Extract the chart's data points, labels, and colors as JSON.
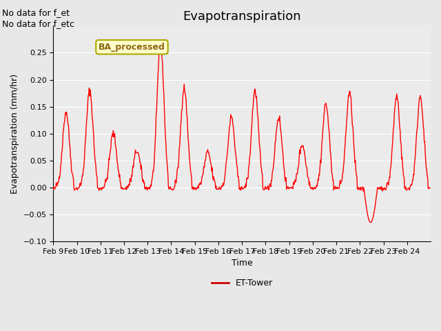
{
  "title": "Evapotranspiration",
  "xlabel": "Time",
  "ylabel": "Evapotranspiration (mm/hr)",
  "ylim": [
    -0.1,
    0.3
  ],
  "yticks": [
    -0.1,
    -0.05,
    0.0,
    0.05,
    0.1,
    0.15,
    0.2,
    0.25
  ],
  "date_labels": [
    "Feb 9",
    "Feb 10",
    "Feb 11",
    "Feb 12",
    "Feb 13",
    "Feb 14",
    "Feb 15",
    "Feb 16",
    "Feb 17",
    "Feb 18",
    "Feb 19",
    "Feb 20",
    "Feb 21",
    "Feb 22",
    "Feb 23",
    "Feb 24"
  ],
  "line_color": "#FF0000",
  "line_width": 1.0,
  "bg_color": "#E8E8E8",
  "plot_bg_color": "#EBEBEB",
  "legend_label": "ET-Tower",
  "legend_line_color": "#CC0000",
  "box_label": "BA_processed",
  "box_facecolor": "#FFFFCC",
  "box_edgecolor": "#AAAA00",
  "no_data_text1": "No data for f_et",
  "no_data_text2": "No data for f_etc",
  "no_data_fontsize": 9,
  "title_fontsize": 13,
  "axis_fontsize": 9,
  "tick_fontsize": 8
}
